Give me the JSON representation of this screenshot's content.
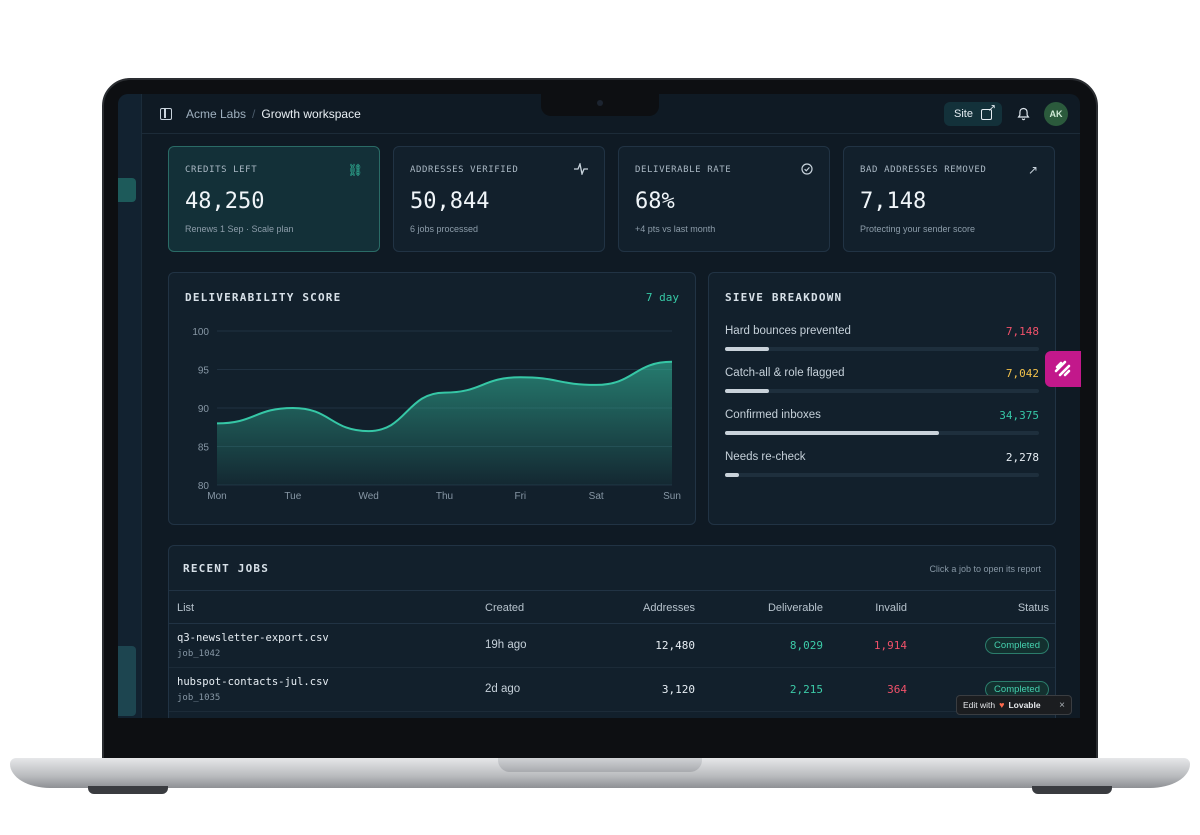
{
  "topbar": {
    "org": "Acme Labs",
    "workspace": "Growth workspace",
    "site_label": "Site",
    "avatar_initials": "AK"
  },
  "stats": [
    {
      "label": "CREDITS LEFT",
      "value": "48,250",
      "sub": "Renews 1 Sep · Scale plan",
      "icon": "link-icon"
    },
    {
      "label": "ADDRESSES VERIFIED",
      "value": "50,844",
      "sub": "6 jobs processed",
      "icon": "activity-icon"
    },
    {
      "label": "DELIVERABLE RATE",
      "value": "68%",
      "sub": "+4 pts vs last month",
      "icon": "check-circle-icon"
    },
    {
      "label": "BAD ADDRESSES REMOVED",
      "value": "7,148",
      "sub": "Protecting your sender score",
      "icon": "arrow-up-right-icon"
    }
  ],
  "score_chart": {
    "title": "DELIVERABILITY SCORE",
    "range": "7 day"
  },
  "chart_data": {
    "type": "area",
    "title": "DELIVERABILITY SCORE",
    "categories": [
      "Mon",
      "Tue",
      "Wed",
      "Thu",
      "Fri",
      "Sat",
      "Sun"
    ],
    "values": [
      88,
      90,
      87,
      92,
      94,
      93,
      96
    ],
    "yticks": [
      100,
      95,
      90,
      85,
      80
    ],
    "ylim": [
      80,
      100
    ],
    "color": "#36c7a6"
  },
  "sieve": {
    "title": "SIEVE BREAKDOWN",
    "items": [
      {
        "label": "Hard bounces prevented",
        "value": "7,148",
        "fraction": 0.14,
        "color": "#f0516a"
      },
      {
        "label": "Catch-all & role flagged",
        "value": "7,042",
        "fraction": 0.14,
        "color": "#f2c14b"
      },
      {
        "label": "Confirmed inboxes",
        "value": "34,375",
        "fraction": 0.68,
        "color": "#36c7a6"
      },
      {
        "label": "Needs re-check",
        "value": "2,278",
        "fraction": 0.045,
        "color": "#e6edf3"
      }
    ]
  },
  "jobs": {
    "title": "RECENT JOBS",
    "hint": "Click a job to open its report",
    "columns": [
      "List",
      "Created",
      "Addresses",
      "Deliverable",
      "Invalid",
      "Status"
    ],
    "rows": [
      {
        "file": "q3-newsletter-export.csv",
        "id": "job_1042",
        "created": "19h ago",
        "addresses": "12,480",
        "deliverable": "8,029",
        "invalid": "1,914",
        "status": "Completed"
      },
      {
        "file": "hubspot-contacts-jul.csv",
        "id": "job_1035",
        "created": "2d ago",
        "addresses": "3,120",
        "deliverable": "2,215",
        "invalid": "364",
        "status": "Completed"
      }
    ]
  },
  "overlay": {
    "edit_with": "Edit with",
    "brand": "Lovable",
    "close": "×"
  }
}
